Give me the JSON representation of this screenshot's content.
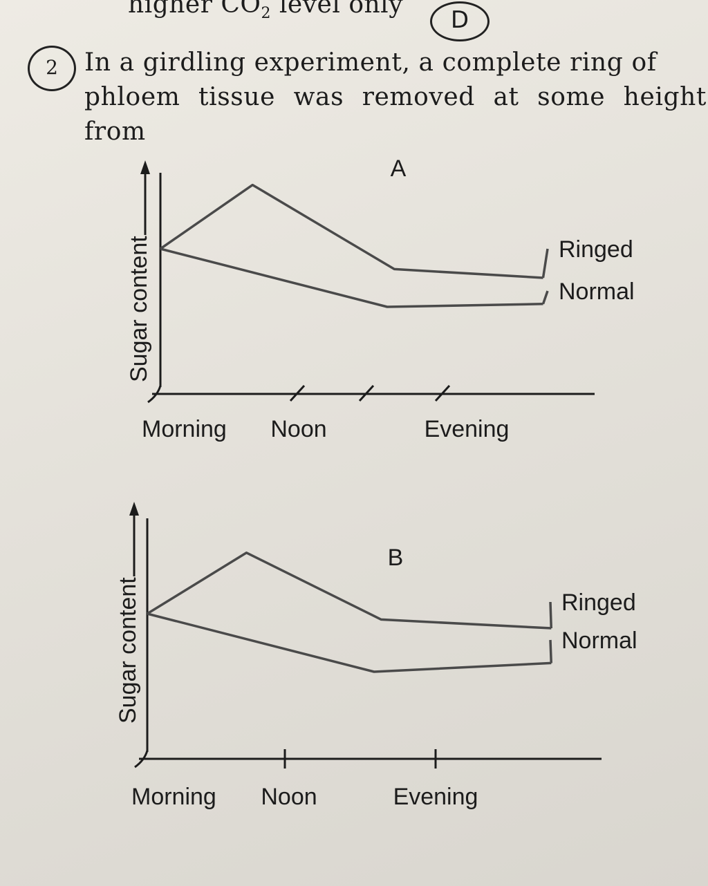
{
  "header": {
    "previous_option_text": "higher CO",
    "previous_option_subscript": "2",
    "previous_option_suffix": " level only",
    "answer_mark": "D"
  },
  "question": {
    "number": "2",
    "line1": "In a girdling experiment, a complete ring of",
    "line2": "phloem tissue was removed at some height from"
  },
  "colors": {
    "line": "#4a4a4a",
    "axis": "#1c1c1c",
    "paper": "#e6e3dc"
  },
  "chart_data": [
    {
      "type": "line",
      "panel_label": "A",
      "ylabel": "Sugar content",
      "x": [
        "Morning",
        "Noon",
        "Evening"
      ],
      "series": [
        {
          "name": "Ringed",
          "points": [
            [
              0,
              5.0
            ],
            [
              0.65,
              7.2
            ],
            [
              1.65,
              4.3
            ],
            [
              2.7,
              4.0
            ]
          ]
        },
        {
          "name": "Normal",
          "points": [
            [
              0,
              5.0
            ],
            [
              1.6,
              3.0
            ],
            [
              2.7,
              3.1
            ]
          ]
        }
      ]
    },
    {
      "type": "line",
      "panel_label": "B",
      "ylabel": "Sugar content",
      "x": [
        "Morning",
        "Noon",
        "Evening"
      ],
      "series": [
        {
          "name": "Ringed",
          "points": [
            [
              0,
              5.0
            ],
            [
              0.7,
              7.1
            ],
            [
              1.65,
              4.8
            ],
            [
              2.85,
              4.5
            ]
          ]
        },
        {
          "name": "Normal",
          "points": [
            [
              0,
              5.0
            ],
            [
              1.6,
              3.0
            ],
            [
              2.85,
              3.3
            ]
          ]
        }
      ]
    }
  ]
}
